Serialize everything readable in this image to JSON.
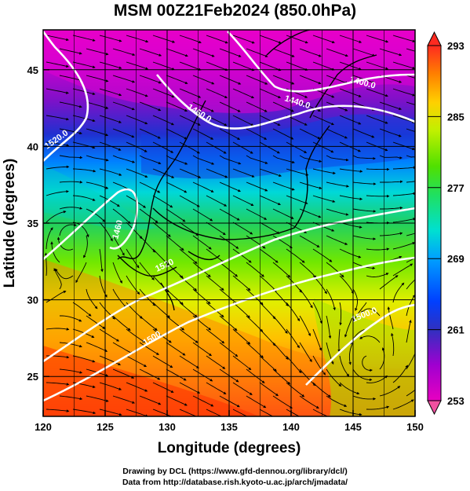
{
  "title": "MSM 00Z21Feb2024 (850.0hPa)",
  "x_axis": {
    "label": "Longitude (degrees)",
    "min": 120,
    "max": 150,
    "ticks": [
      "120",
      "125",
      "130",
      "135",
      "140",
      "145",
      "150"
    ]
  },
  "y_axis": {
    "label": "Latitude (degrees)",
    "min": 22.4,
    "max": 47.6,
    "ticks": [
      "25",
      "30",
      "35",
      "40",
      "45"
    ]
  },
  "colorbar": {
    "min": 253,
    "max": 293,
    "labels": [
      "293",
      "285",
      "277",
      "269",
      "261",
      "253"
    ],
    "colors": [
      "#ff3a2a",
      "#ffa000",
      "#f6f000",
      "#46e000",
      "#00e0e0",
      "#0040ff",
      "#2020b0",
      "#8000c0",
      "#e000d0",
      "#ff40a0"
    ]
  },
  "contours": {
    "labels": [
      "1520.0",
      "1460.0",
      "1440.0",
      "1400.0",
      "1460",
      "1520",
      "1500",
      "1500.0"
    ]
  },
  "credits": {
    "line1": "Drawing by DCL (https://www.gfd-dennou.org/library/dcl/)",
    "line2": "Data from http://database.rish.kyoto-u.ac.jp/arch/jmadata/"
  }
}
